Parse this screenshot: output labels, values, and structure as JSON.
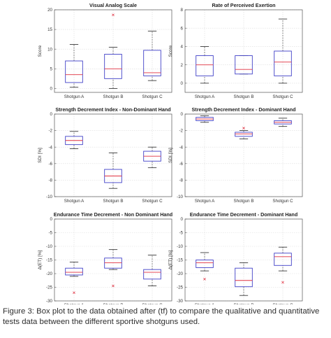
{
  "caption": "Figure 3: Box plot to the data obtained after (tf) to compare the qualitative and quantitative tests data between the different sportive shotguns used.",
  "colors": {
    "box": "#4040c8",
    "median": "#e03040",
    "outlier": "#e03040",
    "whisker": "#555555",
    "grid": "#dddddd"
  },
  "chart_data": [
    {
      "type": "box",
      "title": "Visual Analog Scale",
      "ylabel": "Score",
      "xlabel": "",
      "categories": [
        "Shotgun A",
        "Shotgun B",
        "Shotgun C"
      ],
      "ylim": [
        -1,
        20
      ],
      "yticks": [
        0,
        5,
        10,
        15,
        20
      ],
      "grid": true,
      "boxes": [
        {
          "min": 0.3,
          "q1": 1.5,
          "median": 3.5,
          "q3": 7.0,
          "max": 11.2,
          "outliers": []
        },
        {
          "min": 0.0,
          "q1": 2.5,
          "median": 5.0,
          "q3": 8.7,
          "max": 10.5,
          "outliers": [
            18.7
          ]
        },
        {
          "min": 2.0,
          "q1": 3.2,
          "median": 4.0,
          "q3": 9.7,
          "max": 14.6,
          "outliers": []
        }
      ]
    },
    {
      "type": "box",
      "title": "Rate of Perceived Exertion",
      "ylabel": "Score",
      "xlabel": "",
      "categories": [
        "Shotgun A",
        "Shotgun B",
        "Shotgun C"
      ],
      "ylim": [
        -1,
        8
      ],
      "yticks": [
        0,
        2,
        4,
        6,
        8
      ],
      "grid": true,
      "boxes": [
        {
          "min": 0.0,
          "q1": 0.8,
          "median": 2.0,
          "q3": 3.0,
          "max": 4.0,
          "outliers": []
        },
        {
          "min": 1.0,
          "q1": 1.0,
          "median": 1.5,
          "q3": 3.0,
          "max": 3.0,
          "outliers": []
        },
        {
          "min": 0.0,
          "q1": 0.8,
          "median": 2.3,
          "q3": 3.5,
          "max": 7.0,
          "outliers": []
        }
      ]
    },
    {
      "type": "box",
      "title": "Strength Decrement Index - Non-Dominant Hand",
      "ylabel": "SDI [%]",
      "xlabel": "",
      "categories": [
        "Shotgun A",
        "Shotgun B",
        "Shotgun C"
      ],
      "ylim": [
        -10,
        0
      ],
      "yticks": [
        -10,
        -8,
        -6,
        -4,
        -2,
        0
      ],
      "grid": true,
      "boxes": [
        {
          "min": -4.2,
          "q1": -3.7,
          "median": -3.2,
          "q3": -2.7,
          "max": -2.1,
          "outliers": []
        },
        {
          "min": -9.0,
          "q1": -8.3,
          "median": -7.5,
          "q3": -6.7,
          "max": -4.7,
          "outliers": []
        },
        {
          "min": -6.5,
          "q1": -5.7,
          "median": -5.1,
          "q3": -4.5,
          "max": -4.0,
          "outliers": []
        }
      ]
    },
    {
      "type": "box",
      "title": "Strength Decrement Index - Dominant Hand",
      "ylabel": "SDI [%]",
      "xlabel": "",
      "categories": [
        "Shotgun A",
        "Shotgun B",
        "Shotgun C"
      ],
      "ylim": [
        -10,
        0
      ],
      "yticks": [
        -10,
        -8,
        -6,
        -4,
        -2,
        0
      ],
      "grid": true,
      "boxes": [
        {
          "min": -1.0,
          "q1": -0.8,
          "median": -0.6,
          "q3": -0.4,
          "max": -0.2,
          "outliers": []
        },
        {
          "min": -3.0,
          "q1": -2.7,
          "median": -2.4,
          "q3": -2.2,
          "max": -2.0,
          "outliers": [
            -1.7
          ]
        },
        {
          "min": -1.5,
          "q1": -1.2,
          "median": -1.0,
          "q3": -0.8,
          "max": -0.5,
          "outliers": []
        }
      ]
    },
    {
      "type": "box",
      "title": "Endurance Time Decrement - Non Dominant Hand",
      "ylabel": "Δ(ET) [%]",
      "xlabel": "",
      "categories": [
        "Shotgun A",
        "Shotgun B",
        "Shotgun C"
      ],
      "ylim": [
        -30,
        0
      ],
      "yticks": [
        -30,
        -25,
        -20,
        -15,
        -10,
        -5,
        0
      ],
      "grid": true,
      "boxes": [
        {
          "min": -21.0,
          "q1": -20.5,
          "median": -19.5,
          "q3": -18.0,
          "max": -15.8,
          "outliers": [
            -27.0
          ]
        },
        {
          "min": -18.5,
          "q1": -18.0,
          "median": -16.0,
          "q3": -14.3,
          "max": -11.2,
          "outliers": [
            -24.5
          ]
        },
        {
          "min": -24.5,
          "q1": -22.0,
          "median": -19.5,
          "q3": -18.5,
          "max": -13.2,
          "outliers": []
        }
      ]
    },
    {
      "type": "box",
      "title": "Endurance Time Decrement - Dominant Hand",
      "ylabel": "Δ(ET) [%]",
      "xlabel": "",
      "categories": [
        "Shotgun A",
        "Shotgun B",
        "Shotgun C"
      ],
      "ylim": [
        -30,
        0
      ],
      "yticks": [
        -30,
        -25,
        -20,
        -15,
        -10,
        -5,
        0
      ],
      "grid": true,
      "boxes": [
        {
          "min": -19.0,
          "q1": -17.8,
          "median": -16.0,
          "q3": -15.0,
          "max": -12.3,
          "outliers": [
            -22.0
          ]
        },
        {
          "min": -28.0,
          "q1": -24.8,
          "median": -22.5,
          "q3": -18.0,
          "max": -16.0,
          "outliers": []
        },
        {
          "min": -19.0,
          "q1": -17.0,
          "median": -13.8,
          "q3": -12.5,
          "max": -10.3,
          "outliers": [
            -23.2
          ]
        }
      ]
    }
  ]
}
